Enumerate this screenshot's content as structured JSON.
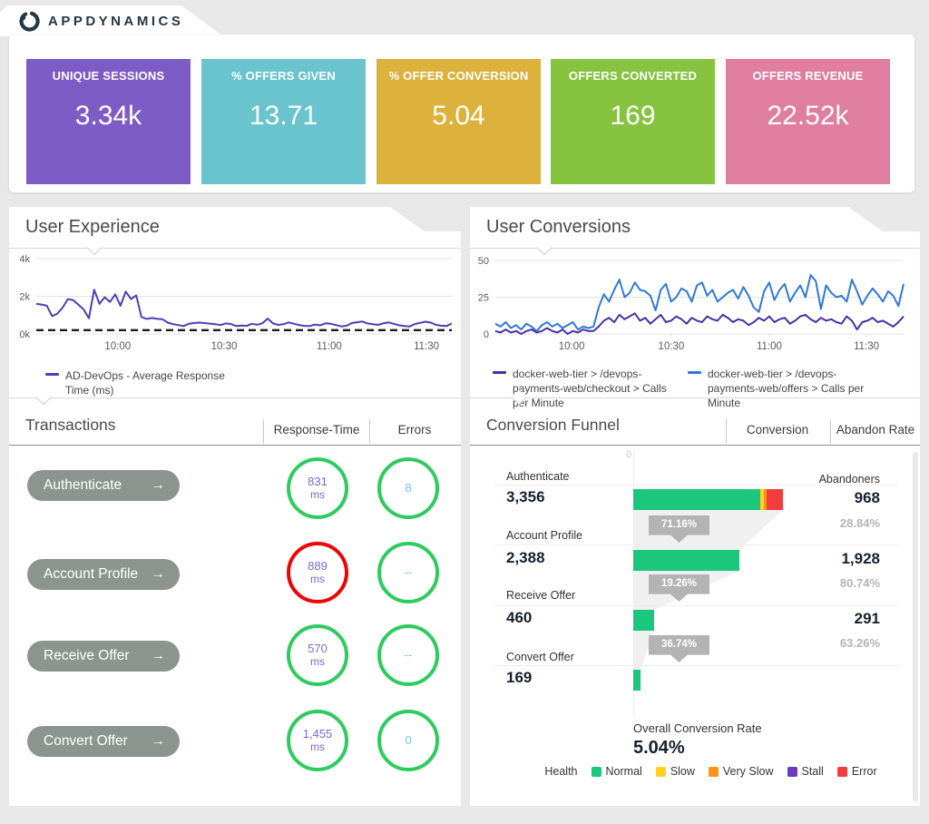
{
  "header": {
    "logo_text": "APPDYNAMICS"
  },
  "kpis": [
    {
      "label": "UNIQUE SESSIONS",
      "value": "3.34k",
      "color": "#7e5cc6"
    },
    {
      "label": "% OFFERS GIVEN",
      "value": "13.71",
      "color": "#69c4cd"
    },
    {
      "label": "% OFFER CONVERSION",
      "value": "5.04",
      "color": "#dcb23c"
    },
    {
      "label": "OFFERS CONVERTED",
      "value": "169",
      "color": "#86c440"
    },
    {
      "label": "OFFERS REVENUE",
      "value": "22.52k",
      "color": "#e07e9f"
    }
  ],
  "user_experience": {
    "title": "User Experience",
    "legend": [
      {
        "label": "AD-DevOps - Average Response Time (ms)",
        "color": "#4a3fb8"
      }
    ],
    "chart_data": {
      "type": "line",
      "title": "User Experience",
      "ylabel": "Average Response Time (ms)",
      "ylim": [
        0,
        4000
      ],
      "grid": true,
      "threshold": 200,
      "yticks": [
        {
          "label": "0k",
          "value": 0
        },
        {
          "label": "2k",
          "value": 2000
        },
        {
          "label": "4k",
          "value": 4000
        }
      ],
      "xticks": [
        {
          "label": "10:00",
          "f": 0.196
        },
        {
          "label": "10:30",
          "f": 0.452
        },
        {
          "label": "11:00",
          "f": 0.705
        },
        {
          "label": "11:30",
          "f": 0.939
        }
      ],
      "x_range": [
        "09:40",
        "11:37"
      ],
      "series": [
        {
          "name": "AD-DevOps - Average Response Time (ms)",
          "color": "#4a3fb8",
          "values": [
            1600,
            1560,
            1500,
            950,
            1080,
            1400,
            1850,
            1800,
            1550,
            1300,
            830,
            2350,
            1600,
            1950,
            1700,
            2100,
            1500,
            2250,
            1850,
            2050,
            900,
            800,
            850,
            800,
            780,
            600,
            520,
            470,
            420,
            540,
            580,
            600,
            580,
            550,
            520,
            470,
            560,
            530,
            420,
            450,
            430,
            540,
            490,
            570,
            820,
            560,
            480,
            520,
            610,
            540,
            470,
            430,
            420,
            500,
            460,
            570,
            540,
            470,
            400,
            440,
            580,
            620,
            660,
            560,
            520,
            480,
            570,
            610,
            540,
            460,
            420,
            400,
            530,
            590,
            650,
            600,
            480,
            440,
            420,
            560
          ]
        }
      ]
    }
  },
  "transactions": {
    "title": "Transactions",
    "columns": [
      "Response-Time",
      "Errors"
    ],
    "arrow": "→",
    "unit": "ms",
    "rows": [
      {
        "name": "Authenticate",
        "rt": "831",
        "rt_ring": "#2ecb5f",
        "err": "8",
        "err_ring": "#2ecb5f"
      },
      {
        "name": "Account Profile",
        "rt": "889",
        "rt_ring": "#ee0404",
        "err": "--",
        "err_ring": "#2ecb5f"
      },
      {
        "name": "Receive Offer",
        "rt": "570",
        "rt_ring": "#2ecb5f",
        "err": "--",
        "err_ring": "#2ecb5f"
      },
      {
        "name": "Convert Offer",
        "rt": "1,455",
        "rt_ring": "#2ecb5f",
        "err": "0",
        "err_ring": "#2ecb5f"
      }
    ]
  },
  "user_conversions": {
    "title": "User Conversions",
    "legend": [
      {
        "label": "docker-web-tier > /devops-payments-web/checkout > Calls per Minute",
        "color": "#4a2fa5"
      },
      {
        "label": "docker-web-tier > /devops-payments-web/offers > Calls per Minute",
        "color": "#3078d4"
      }
    ],
    "chart_data": {
      "type": "line",
      "title": "User Conversions",
      "ylabel": "Calls per Minute",
      "ylim": [
        0,
        50
      ],
      "grid": true,
      "yticks": [
        {
          "label": "0",
          "value": 0
        },
        {
          "label": "25",
          "value": 25
        },
        {
          "label": "50",
          "value": 50
        }
      ],
      "xticks": [
        {
          "label": "10:00",
          "f": 0.187
        },
        {
          "label": "10:30",
          "f": 0.431
        },
        {
          "label": "11:00",
          "f": 0.671
        },
        {
          "label": "11:30",
          "f": 0.909
        }
      ],
      "x_range": [
        "09:40",
        "11:37"
      ],
      "series": [
        {
          "name": "docker-web-tier > /devops-payments-web/checkout > Calls per Minute",
          "color": "#4a2fa5",
          "values": [
            2,
            1,
            3,
            1,
            2,
            0,
            2,
            3,
            1,
            2,
            4,
            2,
            1,
            3,
            0,
            2,
            1,
            3,
            2,
            2,
            5,
            9,
            11,
            8,
            13,
            10,
            12,
            14,
            9,
            11,
            7,
            10,
            13,
            8,
            9,
            12,
            10,
            7,
            11,
            9,
            8,
            12,
            10,
            9,
            13,
            11,
            8,
            10,
            9,
            6,
            8,
            11,
            9,
            12,
            8,
            10,
            11,
            7,
            9,
            12,
            13,
            10,
            8,
            11,
            9,
            10,
            8,
            7,
            12,
            9,
            3,
            8,
            9,
            11,
            8,
            9,
            7,
            5,
            8,
            12
          ]
        },
        {
          "name": "docker-web-tier > /devops-payments-web/offers > Calls per Minute",
          "color": "#3078d4",
          "values": [
            7,
            5,
            8,
            4,
            6,
            3,
            7,
            5,
            2,
            6,
            8,
            5,
            7,
            4,
            6,
            8,
            3,
            5,
            4,
            5,
            18,
            27,
            22,
            30,
            37,
            25,
            28,
            35,
            30,
            29,
            26,
            16,
            30,
            34,
            22,
            25,
            31,
            29,
            22,
            33,
            35,
            26,
            30,
            22,
            25,
            28,
            30,
            24,
            32,
            26,
            18,
            15,
            29,
            35,
            23,
            30,
            34,
            22,
            28,
            33,
            25,
            40,
            36,
            17,
            33,
            28,
            25,
            26,
            22,
            37,
            29,
            20,
            26,
            31,
            27,
            22,
            29,
            26,
            19,
            34
          ]
        }
      ]
    }
  },
  "funnel": {
    "title": "Conversion Funnel",
    "columns": [
      "Conversion",
      "Abandon Rate"
    ],
    "axis_zero_label": "0",
    "abandoners_header": "Abandoners",
    "max_value": 3356,
    "health_colors": {
      "normal": "#1cc67c",
      "slow": "#ffd21e",
      "very_slow": "#f7941e",
      "stall": "#6a3bbf",
      "error": "#f23d3d"
    },
    "rows": [
      {
        "name": "Authenticate",
        "value_display": "3,356",
        "value": 3356,
        "segments": [
          {
            "health": "normal",
            "value": 2847
          },
          {
            "health": "slow",
            "value": 80
          },
          {
            "health": "very_slow",
            "value": 60
          },
          {
            "health": "error",
            "value": 369
          }
        ],
        "abandoners": "968",
        "abandon_rate": "28.84%",
        "conversion_to_next": "71.16%"
      },
      {
        "name": "Account Profile",
        "value_display": "2,388",
        "value": 2388,
        "segments": [
          {
            "health": "normal",
            "value": 2388
          }
        ],
        "abandoners": "1,928",
        "abandon_rate": "80.74%",
        "conversion_to_next": "19.26%"
      },
      {
        "name": "Receive Offer",
        "value_display": "460",
        "value": 460,
        "segments": [
          {
            "health": "normal",
            "value": 460
          }
        ],
        "abandoners": "291",
        "abandon_rate": "63.26%",
        "conversion_to_next": "36.74%"
      },
      {
        "name": "Convert Offer",
        "value_display": "169",
        "value": 169,
        "segments": [
          {
            "health": "normal",
            "value": 169
          }
        ]
      }
    ],
    "overall_label": "Overall Conversion Rate",
    "overall_value": "5.04%",
    "health_legend": {
      "label": "Health",
      "items": [
        {
          "label": "Normal",
          "health": "normal"
        },
        {
          "label": "Slow",
          "health": "slow"
        },
        {
          "label": "Very Slow",
          "health": "very_slow"
        },
        {
          "label": "Stall",
          "health": "stall"
        },
        {
          "label": "Error",
          "health": "error"
        }
      ]
    }
  }
}
